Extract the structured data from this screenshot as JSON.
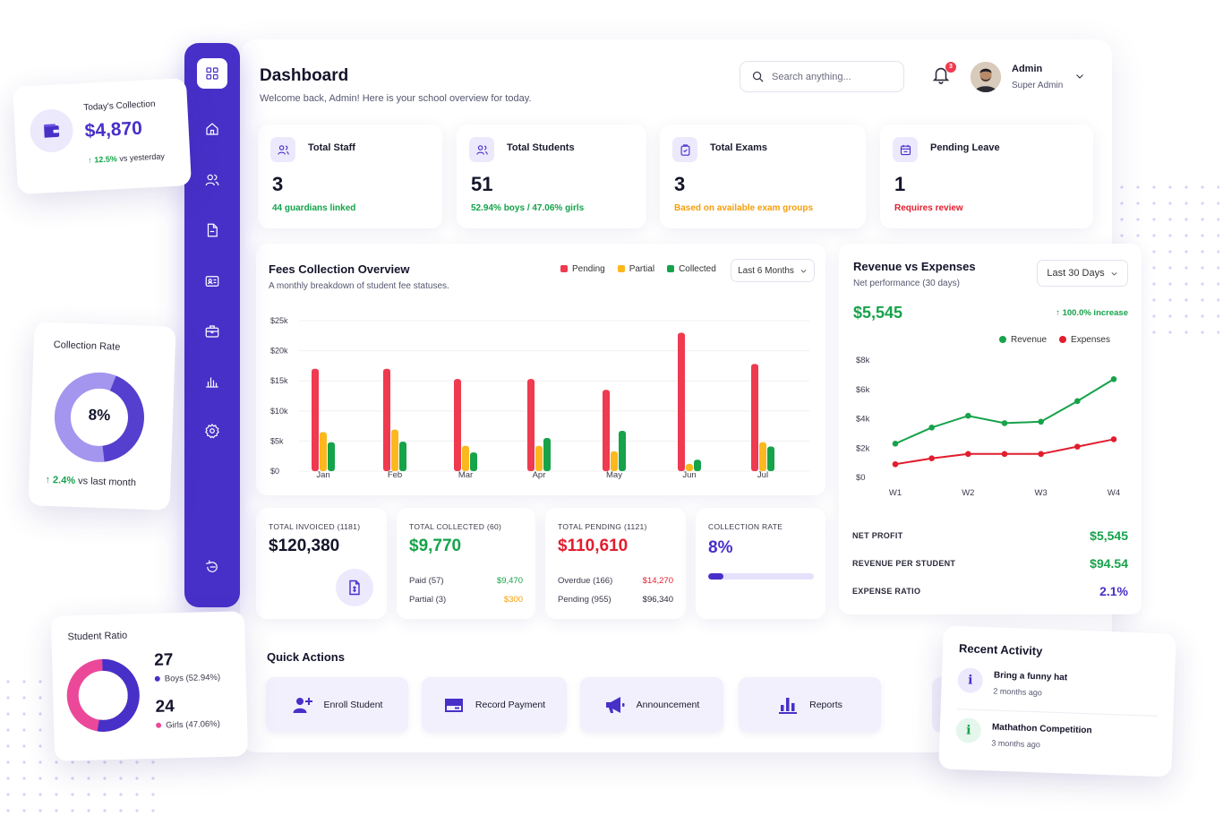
{
  "header": {
    "title": "Dashboard",
    "subtitle": "Welcome back, Admin! Here is your school overview for today.",
    "search_placeholder": "Search anything...",
    "notification_count": "3",
    "user_name": "Admin",
    "user_role": "Super Admin"
  },
  "stats": [
    {
      "label": "Total Staff",
      "value": "3",
      "note": "44 guardians linked",
      "note_color": "#13a34a"
    },
    {
      "label": "Total Students",
      "value": "51",
      "note": "52.94% boys / 47.06% girls",
      "note_color": "#13a34a"
    },
    {
      "label": "Total Exams",
      "value": "3",
      "note": "Based on available exam groups",
      "note_color": "#f59e0b"
    },
    {
      "label": "Pending Leave",
      "value": "1",
      "note": "Requires review",
      "note_color": "#e11d2e"
    }
  ],
  "fees": {
    "title": "Fees Collection Overview",
    "subtitle": "A monthly breakdown of student fee statuses.",
    "range": "Last 6 Months",
    "legend": [
      "Pending",
      "Partial",
      "Collected"
    ]
  },
  "revenue": {
    "title": "Revenue vs Expenses",
    "subtitle": "Net performance (30 days)",
    "range": "Last 30 Days",
    "total": "$5,545",
    "increase": "↑ 100.0% increase",
    "legend": [
      "Revenue",
      "Expenses"
    ],
    "net_profit_label": "NET PROFIT",
    "net_profit": "$5,545",
    "per_student_label": "REVENUE PER STUDENT",
    "per_student": "$94.54",
    "expense_ratio_label": "EXPENSE RATIO",
    "expense_ratio": "2.1%"
  },
  "summary": {
    "invoiced_label": "TOTAL INVOICED (1181)",
    "invoiced_value": "$120,380",
    "collected_label": "TOTAL COLLECTED (60)",
    "collected_value": "$9,770",
    "collected_rows": [
      {
        "label": "Paid (57)",
        "value": "$9,470"
      },
      {
        "label": "Partial (3)",
        "value": "$300"
      }
    ],
    "pending_label": "TOTAL PENDING (1121)",
    "pending_value": "$110,610",
    "pending_rows": [
      {
        "label": "Overdue (166)",
        "value": "$14,270"
      },
      {
        "label": "Pending (955)",
        "value": "$96,340"
      }
    ],
    "rate_label": "COLLECTION RATE",
    "rate_value": "8%",
    "rate_fraction": 0.08
  },
  "quick_actions": {
    "title": "Quick Actions",
    "items": [
      "Enroll Student",
      "Record Payment",
      "Announcement",
      "Reports"
    ]
  },
  "today_collection": {
    "label": "Today's Collection",
    "value": "$4,870",
    "change": "12.5%",
    "change_suffix": "vs yesterday"
  },
  "collection_rate_card": {
    "label": "Collection Rate",
    "value": "8%",
    "change": "↑ 2.4%",
    "change_suffix": "vs last month"
  },
  "student_ratio": {
    "label": "Student Ratio",
    "boys": "27",
    "boys_label": "Boys (52.94%)",
    "girls": "24",
    "girls_label": "Girls (47.06%)",
    "boys_fraction": 0.5294
  },
  "recent_activity": {
    "title": "Recent Activity",
    "items": [
      {
        "title": "Bring a funny hat",
        "time": "2 months ago"
      },
      {
        "title": "Mathathon Competition",
        "time": "3 months ago"
      }
    ]
  },
  "colors": {
    "primary": "#4730c8",
    "pending": "#ef3a4f",
    "partial": "#fbb81f",
    "collected": "#16a34a",
    "revenue": "#16a34a",
    "expenses": "#e11d2e",
    "pink": "#ec4899"
  },
  "chart_data": [
    {
      "type": "bar",
      "title": "Fees Collection Overview",
      "categories": [
        "Jan",
        "Feb",
        "Mar",
        "Apr",
        "May",
        "Jun",
        "Jul"
      ],
      "series": [
        {
          "name": "Pending",
          "values": [
            17000,
            17000,
            15300,
            15300,
            13500,
            23000,
            17800
          ]
        },
        {
          "name": "Partial",
          "values": [
            6500,
            6900,
            4200,
            4200,
            3300,
            1200,
            4800
          ]
        },
        {
          "name": "Collected",
          "values": [
            4800,
            4900,
            3100,
            5500,
            6700,
            1900,
            4100
          ]
        }
      ],
      "yticks": [
        "$0",
        "$5k",
        "$10k",
        "$15k",
        "$20k",
        "$25k"
      ],
      "ylim": [
        0,
        25000
      ]
    },
    {
      "type": "line",
      "title": "Revenue vs Expenses",
      "x": [
        "W1",
        "",
        "W2",
        "",
        "W3",
        "",
        "W4"
      ],
      "xticks": [
        "W1",
        "W2",
        "W3",
        "W4"
      ],
      "series": [
        {
          "name": "Revenue",
          "values": [
            2300,
            3400,
            4200,
            3700,
            3800,
            5200,
            6700
          ]
        },
        {
          "name": "Expenses",
          "values": [
            900,
            1300,
            1600,
            1600,
            1600,
            2100,
            2600
          ]
        }
      ],
      "yticks": [
        "$0",
        "$2k",
        "$4k",
        "$6k",
        "$8k"
      ],
      "ylim": [
        0,
        8000
      ]
    }
  ]
}
